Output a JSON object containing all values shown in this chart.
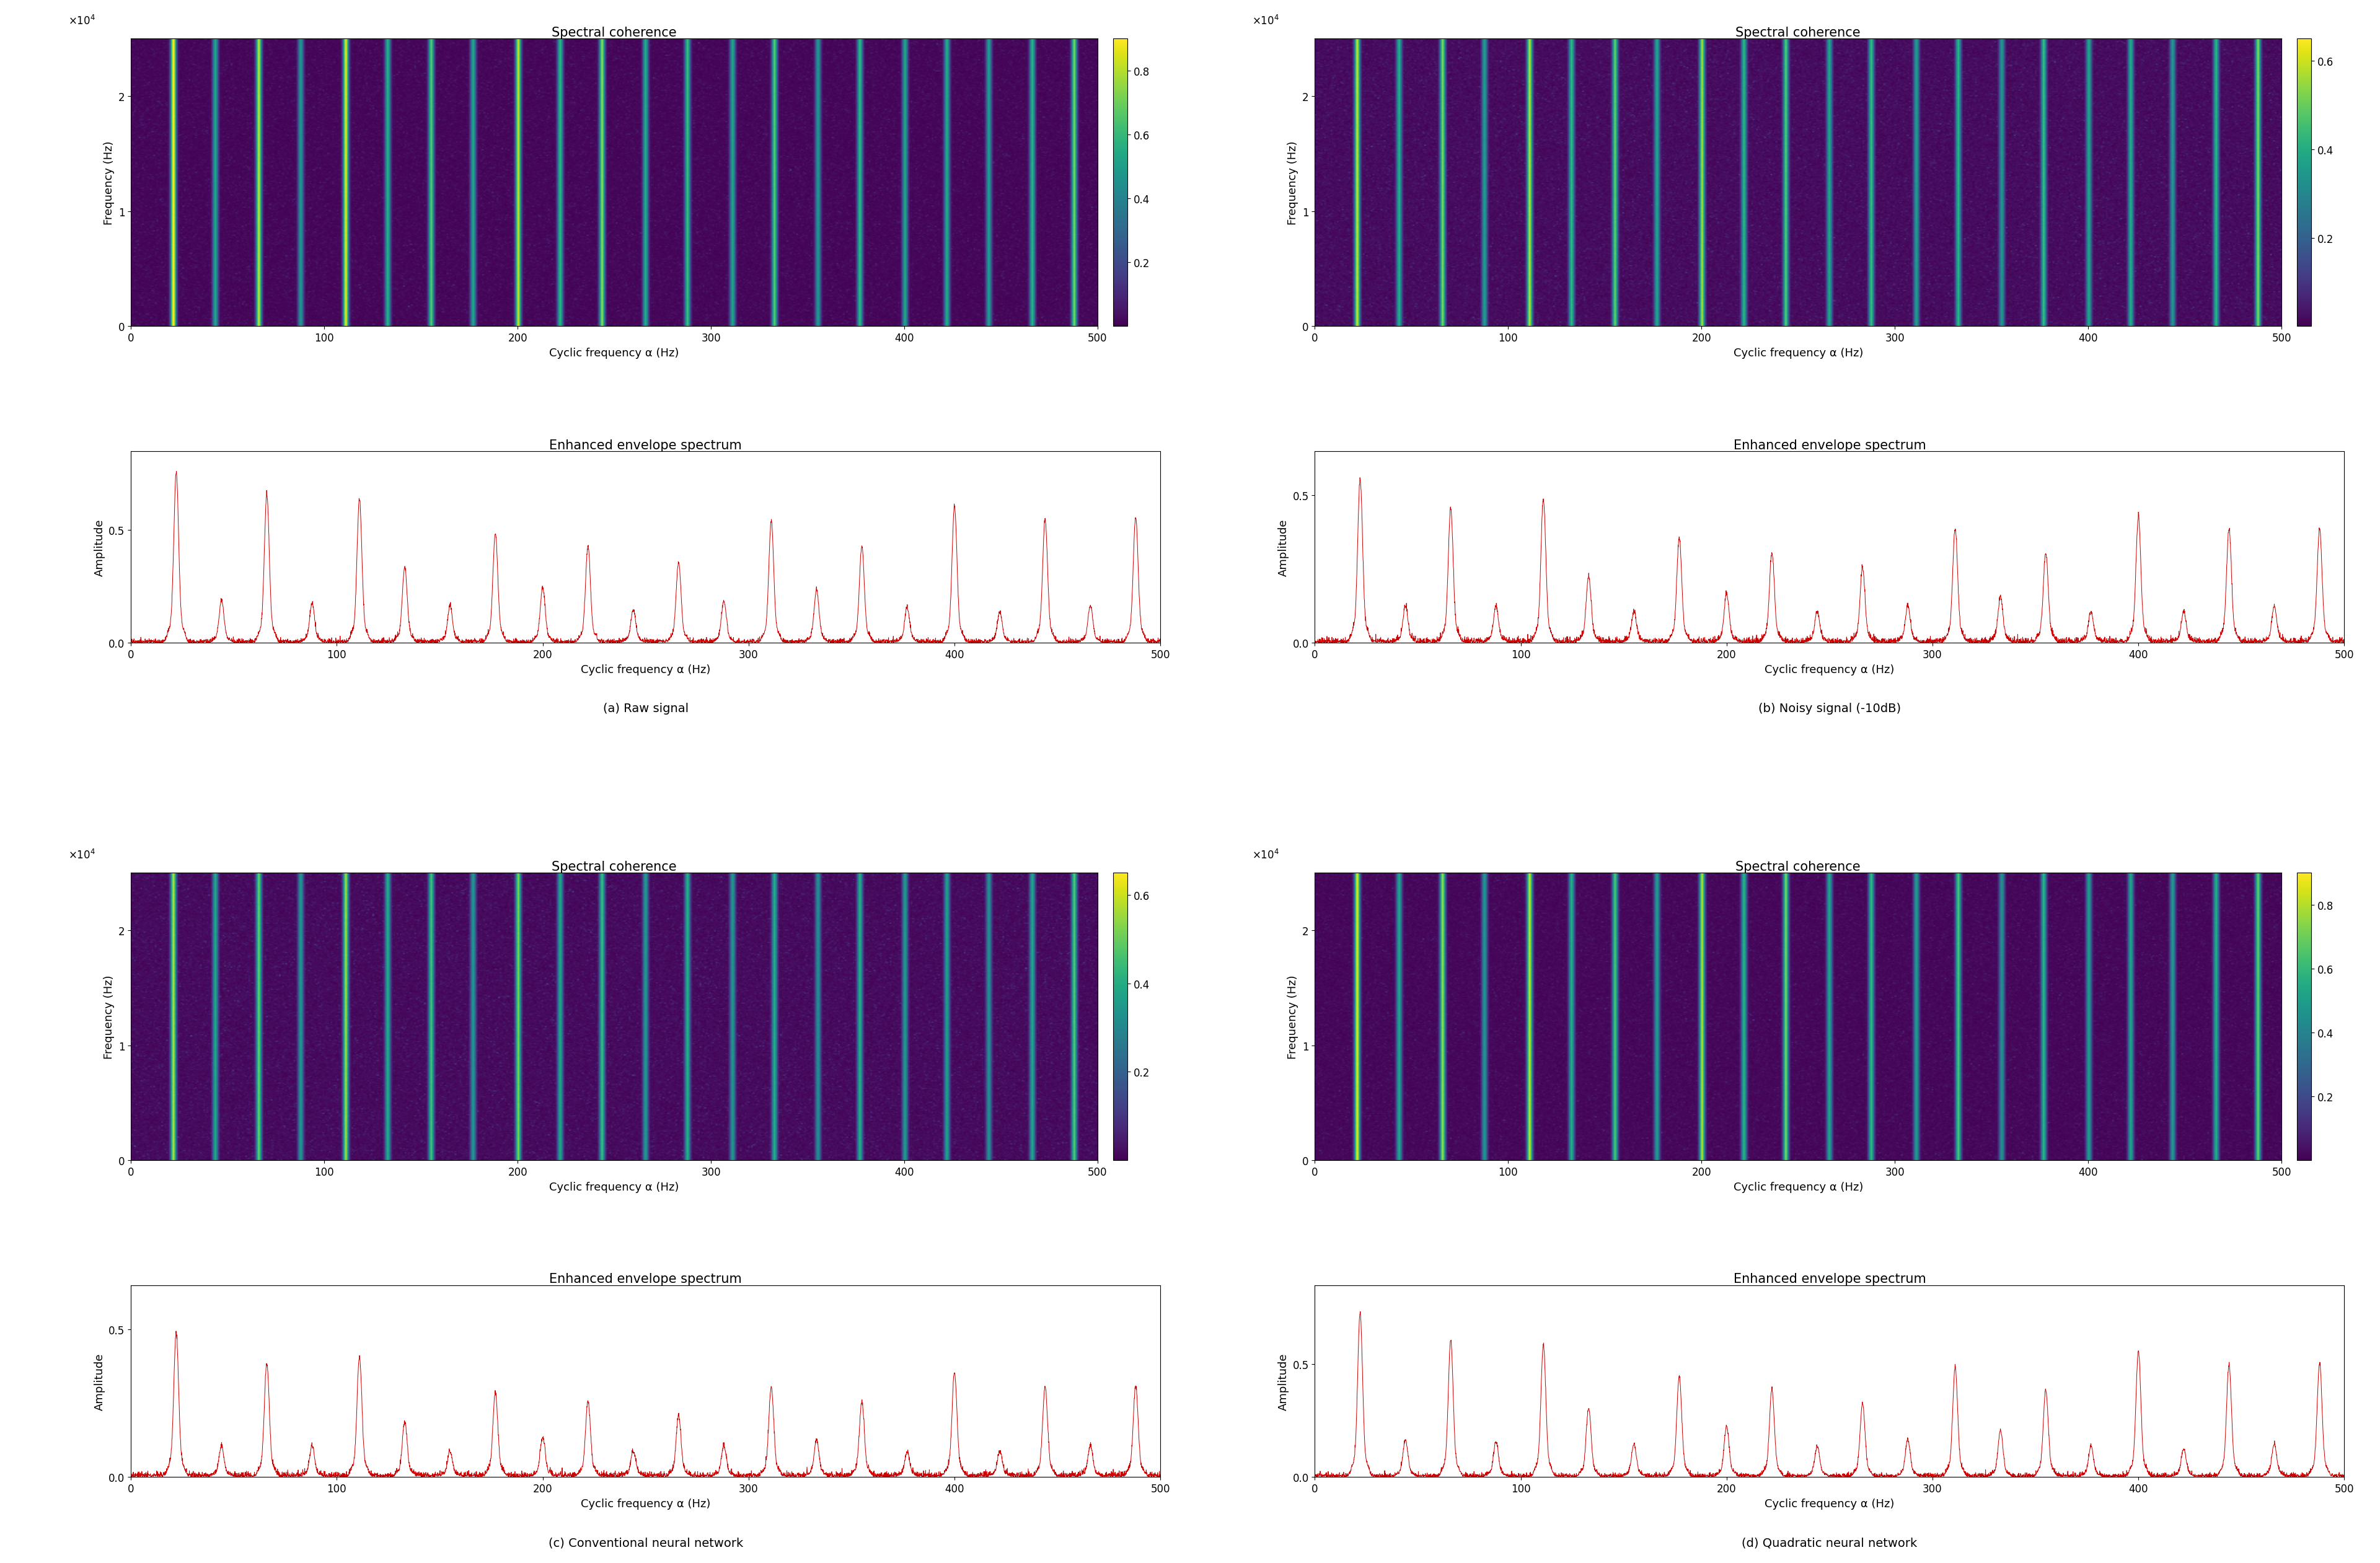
{
  "panels": [
    {
      "label": "(a) Raw signal",
      "coherence_title": "Spectral coherence",
      "envelope_title": "Enhanced envelope spectrum",
      "cbar_max": 0.9,
      "cbar_ticks": [
        0.2,
        0.4,
        0.6,
        0.8
      ],
      "base_noise": 0.02,
      "line_positions": [
        22,
        44,
        66,
        88,
        111,
        133,
        155,
        177,
        200,
        222,
        244,
        266,
        288,
        311,
        333,
        355,
        377,
        400,
        422,
        444,
        466,
        488
      ],
      "line_strengths": [
        0.95,
        0.55,
        0.85,
        0.5,
        0.9,
        0.6,
        0.7,
        0.55,
        0.85,
        0.62,
        0.78,
        0.58,
        0.65,
        0.55,
        0.7,
        0.5,
        0.62,
        0.55,
        0.58,
        0.52,
        0.6,
        0.75
      ],
      "peak_positions": [
        22,
        44,
        66,
        88,
        111,
        133,
        155,
        177,
        200,
        222,
        244,
        266,
        288,
        311,
        333,
        355,
        377,
        400,
        422,
        444,
        466,
        488
      ],
      "peak_heights": [
        0.75,
        0.18,
        0.65,
        0.17,
        0.63,
        0.33,
        0.16,
        0.48,
        0.24,
        0.42,
        0.14,
        0.35,
        0.18,
        0.53,
        0.23,
        0.42,
        0.15,
        0.6,
        0.13,
        0.54,
        0.16,
        0.55
      ],
      "ylim_envelope": [
        0,
        0.85
      ],
      "yticks_envelope": [
        0,
        0.5
      ]
    },
    {
      "label": "(b) Noisy signal (-10dB)",
      "coherence_title": "Spectral coherence",
      "envelope_title": "Enhanced envelope spectrum",
      "cbar_max": 0.65,
      "cbar_ticks": [
        0.2,
        0.4,
        0.6
      ],
      "base_noise": 0.03,
      "line_positions": [
        22,
        44,
        66,
        88,
        111,
        133,
        155,
        177,
        200,
        222,
        244,
        266,
        288,
        311,
        333,
        355,
        377,
        400,
        422,
        444,
        466,
        488
      ],
      "line_strengths": [
        0.62,
        0.42,
        0.55,
        0.38,
        0.6,
        0.45,
        0.52,
        0.4,
        0.58,
        0.44,
        0.5,
        0.4,
        0.46,
        0.38,
        0.44,
        0.36,
        0.46,
        0.4,
        0.42,
        0.36,
        0.44,
        0.55
      ],
      "peak_positions": [
        22,
        44,
        66,
        88,
        111,
        133,
        155,
        177,
        200,
        222,
        244,
        266,
        288,
        311,
        333,
        355,
        377,
        400,
        422,
        444,
        466,
        488
      ],
      "peak_heights": [
        0.55,
        0.12,
        0.45,
        0.12,
        0.48,
        0.22,
        0.1,
        0.35,
        0.16,
        0.3,
        0.1,
        0.25,
        0.12,
        0.38,
        0.15,
        0.3,
        0.1,
        0.42,
        0.1,
        0.38,
        0.12,
        0.38
      ],
      "ylim_envelope": [
        0,
        0.65
      ],
      "yticks_envelope": [
        0,
        0.5
      ]
    },
    {
      "label": "(c) Conventional neural network",
      "coherence_title": "Spectral coherence",
      "envelope_title": "Enhanced envelope spectrum",
      "cbar_max": 0.65,
      "cbar_ticks": [
        0.2,
        0.4,
        0.6
      ],
      "base_noise": 0.025,
      "line_positions": [
        22,
        44,
        66,
        88,
        111,
        133,
        155,
        177,
        200,
        222,
        244,
        266,
        288,
        311,
        333,
        355,
        377,
        400,
        422,
        444,
        466,
        488
      ],
      "line_strengths": [
        0.6,
        0.4,
        0.52,
        0.36,
        0.58,
        0.42,
        0.48,
        0.36,
        0.54,
        0.4,
        0.46,
        0.37,
        0.43,
        0.36,
        0.42,
        0.34,
        0.42,
        0.37,
        0.39,
        0.34,
        0.4,
        0.5
      ],
      "peak_positions": [
        22,
        44,
        66,
        88,
        111,
        133,
        155,
        177,
        200,
        222,
        244,
        266,
        288,
        311,
        333,
        355,
        377,
        400,
        422,
        444,
        466,
        488
      ],
      "peak_heights": [
        0.48,
        0.1,
        0.38,
        0.1,
        0.4,
        0.18,
        0.08,
        0.28,
        0.13,
        0.25,
        0.08,
        0.2,
        0.1,
        0.3,
        0.12,
        0.25,
        0.08,
        0.35,
        0.08,
        0.3,
        0.1,
        0.3
      ],
      "ylim_envelope": [
        0,
        0.65
      ],
      "yticks_envelope": [
        0,
        0.5
      ]
    },
    {
      "label": "(d) Quadratic neural network",
      "coherence_title": "Spectral coherence",
      "envelope_title": "Enhanced envelope spectrum",
      "cbar_max": 0.9,
      "cbar_ticks": [
        0.2,
        0.4,
        0.6,
        0.8
      ],
      "base_noise": 0.025,
      "line_positions": [
        22,
        44,
        66,
        88,
        111,
        133,
        155,
        177,
        200,
        222,
        244,
        266,
        288,
        311,
        333,
        355,
        377,
        400,
        422,
        444,
        466,
        488
      ],
      "line_strengths": [
        0.9,
        0.55,
        0.8,
        0.5,
        0.85,
        0.58,
        0.68,
        0.52,
        0.82,
        0.6,
        0.75,
        0.55,
        0.62,
        0.52,
        0.68,
        0.48,
        0.6,
        0.52,
        0.55,
        0.5,
        0.58,
        0.72
      ],
      "peak_positions": [
        22,
        44,
        66,
        88,
        111,
        133,
        155,
        177,
        200,
        222,
        244,
        266,
        288,
        311,
        333,
        355,
        377,
        400,
        422,
        444,
        466,
        488
      ],
      "peak_heights": [
        0.72,
        0.16,
        0.6,
        0.15,
        0.58,
        0.3,
        0.14,
        0.44,
        0.22,
        0.38,
        0.13,
        0.32,
        0.16,
        0.48,
        0.2,
        0.38,
        0.13,
        0.55,
        0.12,
        0.49,
        0.14,
        0.5
      ],
      "ylim_envelope": [
        0,
        0.85
      ],
      "yticks_envelope": [
        0,
        0.5
      ]
    }
  ],
  "colormap": "viridis",
  "freq_max": 25000,
  "alpha_max": 500,
  "xlabel": "Cyclic frequency α (Hz)",
  "ylabel_coherence": "Frequency (Hz)",
  "ylabel_envelope": "Amplitude",
  "background_color": "#ffffff",
  "line_color": "#cc0000",
  "fig_width": 38.4,
  "fig_height": 25.23,
  "title_fontsize": 15,
  "label_fontsize": 13,
  "tick_fontsize": 12,
  "caption_fontsize": 14
}
